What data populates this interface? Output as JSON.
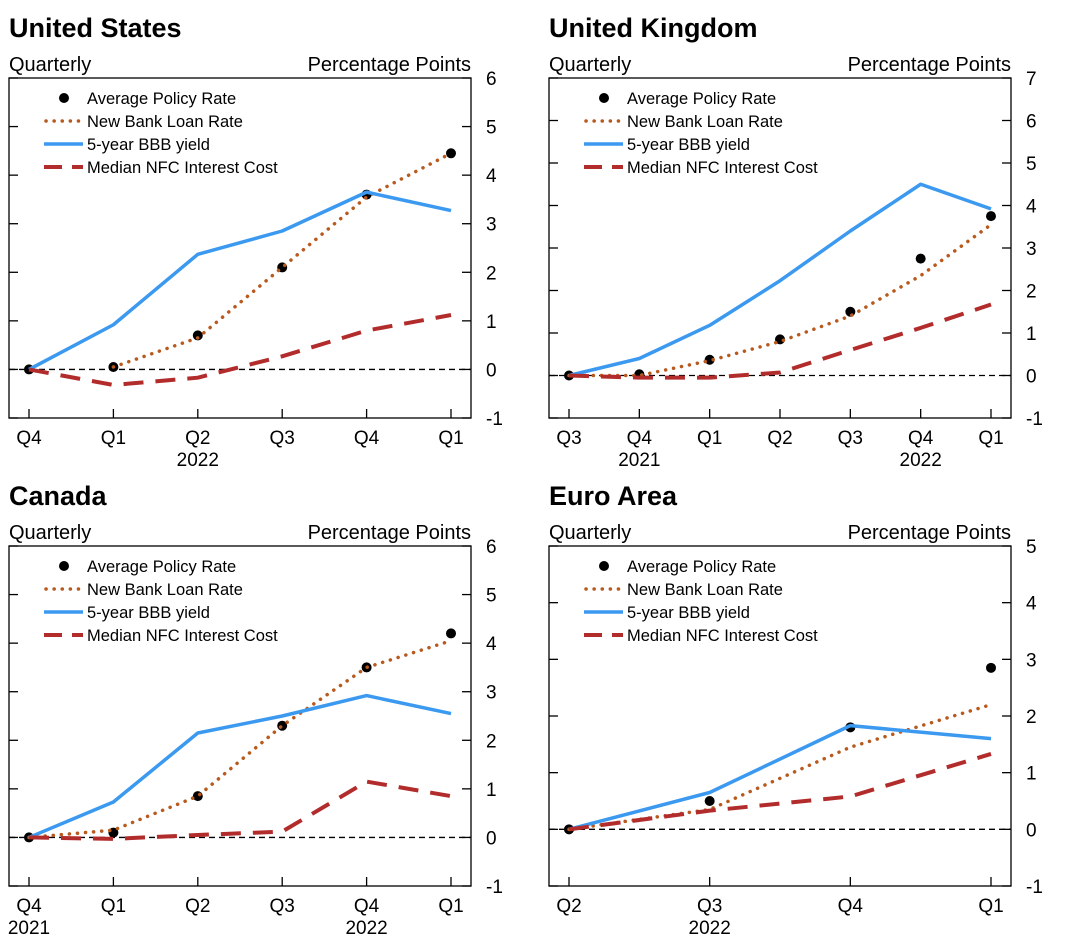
{
  "chart_data": [
    {
      "type": "line",
      "title": "United States",
      "frequency_label": "Quarterly",
      "unit_label": "Percentage Points",
      "categories": [
        "Q4",
        "Q1",
        "Q2",
        "Q3",
        "Q4",
        "Q1"
      ],
      "year_labels": [
        {
          "label": "2022",
          "at": 2
        }
      ],
      "ylim": [
        -1,
        6
      ],
      "yticks": [
        -1,
        0,
        1,
        2,
        3,
        4,
        5,
        6
      ],
      "grid": false,
      "legend_position": "top-left",
      "series": [
        {
          "name": "Average Policy Rate",
          "style": "dots",
          "color": "#000000",
          "values": [
            0,
            0.05,
            0.7,
            2.1,
            3.6,
            4.45
          ]
        },
        {
          "name": "New Bank Loan Rate",
          "style": "dotted",
          "color": "#B85A1E",
          "values": [
            null,
            0.05,
            0.65,
            2.1,
            3.55,
            4.45
          ]
        },
        {
          "name": "5-year BBB yield",
          "style": "solid",
          "color": "#3B99F0",
          "values": [
            0,
            0.92,
            2.37,
            2.85,
            3.65,
            3.27
          ]
        },
        {
          "name": "Median NFC Interest Cost",
          "style": "dashed",
          "color": "#B22C2C",
          "values": [
            0,
            -0.32,
            -0.17,
            0.27,
            0.8,
            1.12
          ]
        }
      ]
    },
    {
      "type": "line",
      "title": "United Kingdom",
      "frequency_label": "Quarterly",
      "unit_label": "Percentage Points",
      "categories": [
        "Q3",
        "Q4",
        "Q1",
        "Q2",
        "Q3",
        "Q4",
        "Q1"
      ],
      "year_labels": [
        {
          "label": "2021",
          "at": 1
        },
        {
          "label": "2022",
          "at": 5
        }
      ],
      "ylim": [
        -1,
        7
      ],
      "yticks": [
        -1,
        0,
        1,
        2,
        3,
        4,
        5,
        6,
        7
      ],
      "grid": false,
      "legend_position": "top-left",
      "series": [
        {
          "name": "Average Policy Rate",
          "style": "dots",
          "color": "#000000",
          "values": [
            0,
            0.03,
            0.37,
            0.85,
            1.5,
            2.75,
            3.75
          ]
        },
        {
          "name": "New Bank Loan Rate",
          "style": "dotted",
          "color": "#B85A1E",
          "values": [
            0,
            0,
            0.35,
            0.8,
            1.4,
            2.35,
            3.55
          ]
        },
        {
          "name": "5-year BBB yield",
          "style": "solid",
          "color": "#3B99F0",
          "values": [
            0,
            0.4,
            1.18,
            2.23,
            3.4,
            4.5,
            3.92
          ]
        },
        {
          "name": "Median NFC Interest Cost",
          "style": "dashed",
          "color": "#B22C2C",
          "values": [
            0,
            -0.05,
            -0.05,
            0.07,
            0.6,
            1.12,
            1.67
          ]
        }
      ]
    },
    {
      "type": "line",
      "title": "Canada",
      "frequency_label": "Quarterly",
      "unit_label": "Percentage Points",
      "categories": [
        "Q4",
        "Q1",
        "Q2",
        "Q3",
        "Q4",
        "Q1"
      ],
      "year_labels": [
        {
          "label": "2021",
          "at": 0
        },
        {
          "label": "2022",
          "at": 4
        }
      ],
      "ylim": [
        -1,
        6
      ],
      "yticks": [
        -1,
        0,
        1,
        2,
        3,
        4,
        5,
        6
      ],
      "grid": false,
      "legend_position": "top-left",
      "series": [
        {
          "name": "Average Policy Rate",
          "style": "dots",
          "color": "#000000",
          "values": [
            0,
            0.1,
            0.85,
            2.3,
            3.5,
            4.2
          ]
        },
        {
          "name": "New Bank Loan Rate",
          "style": "dotted",
          "color": "#B85A1E",
          "values": [
            0,
            0.15,
            0.85,
            2.3,
            3.5,
            4.05
          ]
        },
        {
          "name": "5-year BBB yield",
          "style": "solid",
          "color": "#3B99F0",
          "values": [
            0,
            0.73,
            2.15,
            2.5,
            2.92,
            2.55
          ]
        },
        {
          "name": "Median NFC Interest Cost",
          "style": "dashed",
          "color": "#B22C2C",
          "values": [
            0,
            -0.03,
            0.05,
            0.12,
            1.15,
            0.85
          ]
        }
      ]
    },
    {
      "type": "line",
      "title": "Euro Area",
      "frequency_label": "Quarterly",
      "unit_label": "Percentage Points",
      "categories": [
        "Q2",
        "Q3",
        "Q4",
        "Q1"
      ],
      "year_labels": [
        {
          "label": "2022",
          "at": 1
        }
      ],
      "ylim": [
        -1,
        5
      ],
      "yticks": [
        -1,
        0,
        1,
        2,
        3,
        4,
        5
      ],
      "grid": false,
      "legend_position": "top-left",
      "series": [
        {
          "name": "Average Policy Rate",
          "style": "dots",
          "color": "#000000",
          "values": [
            0,
            0.5,
            1.8,
            2.85
          ]
        },
        {
          "name": "New Bank Loan Rate",
          "style": "dotted",
          "color": "#B85A1E",
          "values": [
            0,
            0.35,
            1.45,
            2.2
          ]
        },
        {
          "name": "5-year BBB yield",
          "style": "solid",
          "color": "#3B99F0",
          "values": [
            0,
            0.65,
            1.83,
            1.6
          ]
        },
        {
          "name": "Median NFC Interest Cost",
          "style": "dashed",
          "color": "#B22C2C",
          "values": [
            0,
            0.33,
            0.58,
            1.33
          ]
        }
      ]
    }
  ]
}
